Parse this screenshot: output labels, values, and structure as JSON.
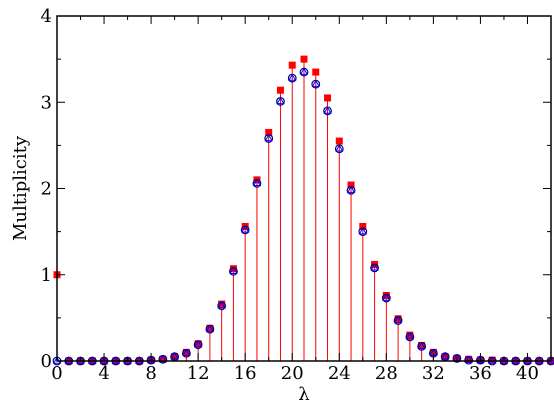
{
  "chart_data": {
    "type": "scatter",
    "xlabel": "λ",
    "ylabel": "Multiplicity",
    "xlim": [
      0,
      42
    ],
    "ylim": [
      0,
      4
    ],
    "x_ticks": [
      0,
      4,
      8,
      12,
      16,
      20,
      24,
      28,
      32,
      36,
      40
    ],
    "y_ticks": [
      0,
      1,
      2,
      3,
      4
    ],
    "grid": false,
    "x": [
      0,
      1,
      2,
      3,
      4,
      5,
      6,
      7,
      8,
      9,
      10,
      11,
      12,
      13,
      14,
      15,
      16,
      17,
      18,
      19,
      20,
      21,
      22,
      23,
      24,
      25,
      26,
      27,
      28,
      29,
      30,
      31,
      32,
      33,
      34,
      35,
      36,
      37,
      38,
      39,
      40,
      41,
      42
    ],
    "series": [
      {
        "marker": "square",
        "color": "#ff0000",
        "with_stems": true,
        "values": [
          1.0,
          0,
          0,
          0,
          0,
          0,
          0,
          0,
          0.01,
          0.02,
          0.05,
          0.1,
          0.2,
          0.38,
          0.66,
          1.07,
          1.56,
          2.1,
          2.65,
          3.14,
          3.43,
          3.5,
          3.35,
          3.05,
          2.55,
          2.04,
          1.56,
          1.12,
          0.76,
          0.49,
          0.3,
          0.18,
          0.1,
          0.05,
          0.03,
          0.02,
          0.01,
          0.01,
          0,
          0,
          0,
          0,
          0
        ]
      },
      {
        "marker": "circle",
        "color": "#000080",
        "values": [
          0,
          0,
          0,
          0,
          0,
          0,
          0,
          0,
          0.01,
          0.02,
          0.05,
          0.09,
          0.19,
          0.37,
          0.64,
          1.04,
          1.52,
          2.06,
          2.58,
          3.01,
          3.28,
          3.35,
          3.21,
          2.9,
          2.46,
          1.98,
          1.5,
          1.08,
          0.73,
          0.47,
          0.28,
          0.17,
          0.09,
          0.05,
          0.03,
          0.01,
          0.01,
          0,
          0,
          0,
          0,
          0,
          0
        ]
      },
      {
        "marker": "triangle",
        "color": "#0000ff",
        "values": [
          0,
          0,
          0,
          0,
          0,
          0,
          0,
          0,
          0.01,
          0.02,
          0.05,
          0.09,
          0.19,
          0.37,
          0.64,
          1.04,
          1.52,
          2.06,
          2.58,
          3.01,
          3.28,
          3.35,
          3.21,
          2.9,
          2.46,
          1.98,
          1.5,
          1.08,
          0.73,
          0.47,
          0.28,
          0.17,
          0.09,
          0.05,
          0.03,
          0.01,
          0.01,
          0,
          0,
          0,
          0,
          0,
          0
        ]
      }
    ]
  }
}
